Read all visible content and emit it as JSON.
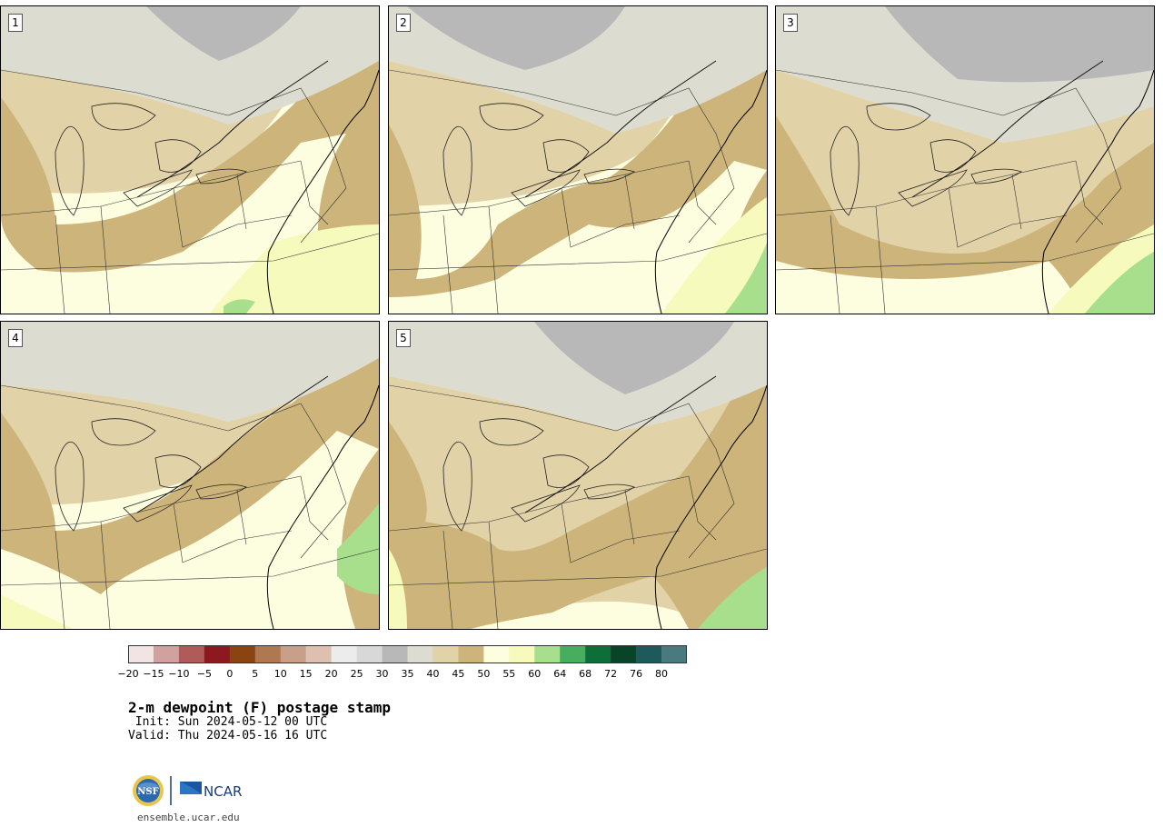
{
  "panels": [
    {
      "label": "1"
    },
    {
      "label": "2"
    },
    {
      "label": "3"
    },
    {
      "label": "4"
    },
    {
      "label": "5"
    }
  ],
  "colorbar": {
    "tick_labels": [
      "−20",
      "−15",
      "−10",
      "−5",
      "0",
      "5",
      "10",
      "15",
      "20",
      "25",
      "30",
      "35",
      "40",
      "45",
      "50",
      "55",
      "60",
      "64",
      "68",
      "72",
      "76",
      "80"
    ],
    "colors": [
      "#f2e4e4",
      "#d3a0a0",
      "#b05a5a",
      "#8c1820",
      "#8a4412",
      "#b07850",
      "#c8a08a",
      "#ddc0b0",
      "#ececec",
      "#d8d8d8",
      "#b8b8b8",
      "#dcdcd0",
      "#e2d2a8",
      "#cdb47a",
      "#fdfde0",
      "#f6fabc",
      "#a8df8c",
      "#46ae5e",
      "#0e6e38",
      "#0a4428",
      "#1e5a5c",
      "#4a7a80"
    ]
  },
  "map_colors": {
    "bg": "#fdfde0",
    "c25": "#d8d8d8",
    "c30": "#b8b8b8",
    "c35": "#dcdcd0",
    "c40": "#e2d2a8",
    "c45": "#cdb47a",
    "c55": "#f6fabc",
    "c60": "#a8df8c",
    "c64": "#46ae5e"
  },
  "text": {
    "title": "2-m dewpoint (F) postage stamp",
    "init": " Init: Sun 2024-05-12 00 UTC",
    "valid": "Valid: Thu 2024-05-16 16 UTC",
    "site": "ensemble.ucar.edu",
    "nsf": "NSF",
    "ncar": "NCAR"
  }
}
